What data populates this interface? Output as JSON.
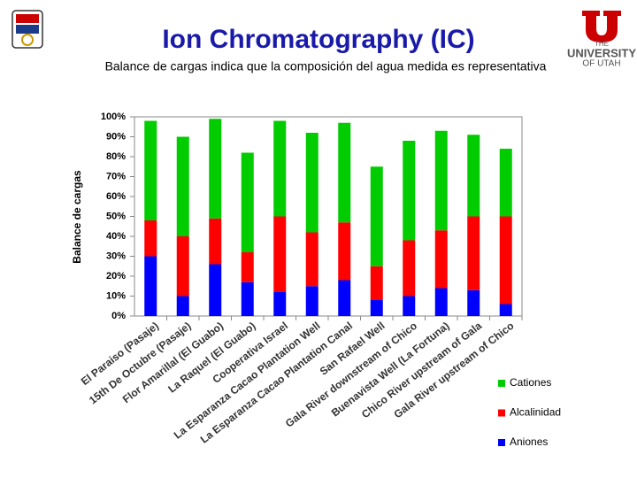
{
  "header": {
    "title": "Ion Chromatography (IC)",
    "subtitle": "Balance de cargas indica que la composición del agua medida es representativa",
    "logo_right": [
      "THE",
      "UNIVERSITY",
      "OF UTAH"
    ]
  },
  "chart_data": {
    "type": "stacked_bar",
    "ylabel": "Balance de cargas",
    "categories": [
      "El Paraiso (Pasaje)",
      "15th De Octubre (Pasaje)",
      "Flor Amarillal (El Guabo)",
      "La Raquel (El Guabo)",
      "Cooperativa Israel",
      "La Esparanza Cacao Plantation Well",
      "La Esparanza Cacao Plantation Canal",
      "San Rafael Well",
      "Gala River downstream of Chico",
      "Buenavista Well (La Fortuna)",
      "Chico River upstream of Gala",
      "Gala River upstream of Chico"
    ],
    "series": [
      {
        "name": "Aniones",
        "color": "#0000ff",
        "values": [
          30,
          10,
          26,
          17,
          12,
          15,
          18,
          8,
          10,
          14,
          13,
          6
        ]
      },
      {
        "name": "Alcalinidad",
        "color": "#ff0000",
        "values": [
          18,
          30,
          23,
          15,
          38,
          27,
          29,
          17,
          28,
          29,
          37,
          44
        ]
      },
      {
        "name": "Cationes",
        "color": "#00cc00",
        "values": [
          50,
          50,
          50,
          50,
          48,
          50,
          50,
          50,
          50,
          50,
          41,
          34
        ]
      }
    ],
    "ylim": [
      0,
      100
    ],
    "yticks": [
      {
        "value": 0,
        "label": "0%"
      },
      {
        "value": 10,
        "label": "10%"
      },
      {
        "value": 20,
        "label": "20%"
      },
      {
        "value": 30,
        "label": "30%"
      },
      {
        "value": 40,
        "label": "40%"
      },
      {
        "value": 50,
        "label": "50%"
      },
      {
        "value": 60,
        "label": "60%"
      },
      {
        "value": 70,
        "label": "70%"
      },
      {
        "value": 80,
        "label": "80%"
      },
      {
        "value": 90,
        "label": "90%"
      },
      {
        "value": 100,
        "label": "100%"
      }
    ],
    "legend": "right"
  }
}
